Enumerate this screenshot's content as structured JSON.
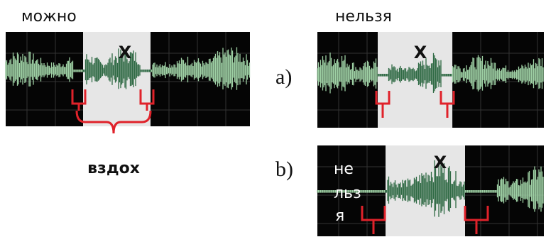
{
  "labels": {
    "allowed": "можно",
    "forbidden": "нельзя",
    "breath": "вздох",
    "a": "a)",
    "b": "b)"
  },
  "panels": [
    {
      "mark": "X"
    },
    {
      "mark": "X"
    },
    {
      "mark": "X",
      "side_text": [
        "не",
        "льз",
        "я"
      ]
    }
  ]
}
